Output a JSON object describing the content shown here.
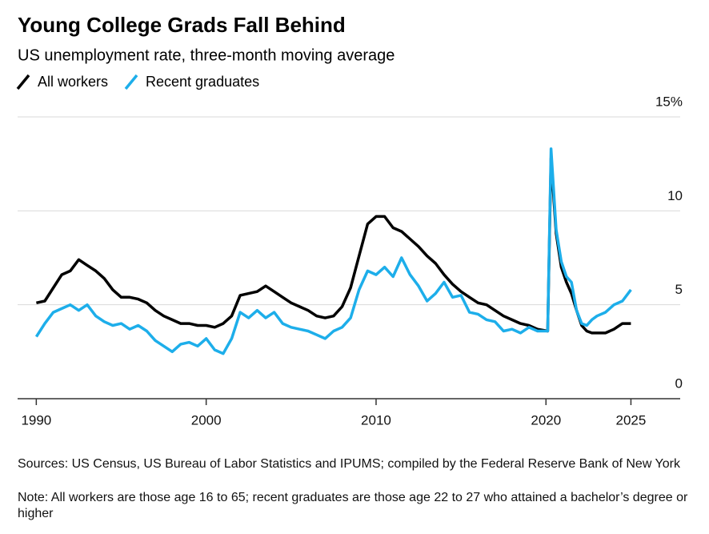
{
  "chart_data": {
    "type": "line",
    "title": "Young College Grads Fall Behind",
    "subtitle": "US unemployment rate, three-month moving average",
    "sources": "Sources: US Census, US Bureau of Labor Statistics and IPUMS; compiled by the Federal Reserve Bank of New York",
    "note": "Note: All workers are those age 16 to 65; recent graduates are those age 22 to 27 who attained a bachelor’s degree or higher",
    "x": [
      1990,
      1990.5,
      1991,
      1991.5,
      1992,
      1992.5,
      1993,
      1993.5,
      1994,
      1994.5,
      1995,
      1995.5,
      1996,
      1996.5,
      1997,
      1997.5,
      1998,
      1998.5,
      1999,
      1999.5,
      2000,
      2000.5,
      2001,
      2001.5,
      2002,
      2002.5,
      2003,
      2003.5,
      2004,
      2004.5,
      2005,
      2005.5,
      2006,
      2006.5,
      2007,
      2007.5,
      2008,
      2008.5,
      2009,
      2009.5,
      2010,
      2010.5,
      2011,
      2011.5,
      2012,
      2012.5,
      2013,
      2013.5,
      2014,
      2014.5,
      2015,
      2015.5,
      2016,
      2016.5,
      2017,
      2017.5,
      2018,
      2018.5,
      2019,
      2019.5,
      2020.1,
      2020.3,
      2020.6,
      2020.9,
      2021.2,
      2021.5,
      2021.8,
      2022.1,
      2022.4,
      2022.7,
      2023,
      2023.5,
      2024,
      2024.5,
      2025
    ],
    "series": [
      {
        "name": "All workers",
        "color": "#000000",
        "values": [
          5.1,
          5.2,
          5.9,
          6.6,
          6.8,
          7.4,
          7.1,
          6.8,
          6.4,
          5.8,
          5.4,
          5.4,
          5.3,
          5.1,
          4.7,
          4.4,
          4.2,
          4.0,
          4.0,
          3.9,
          3.9,
          3.8,
          4.0,
          4.4,
          5.5,
          5.6,
          5.7,
          6.0,
          5.7,
          5.4,
          5.1,
          4.9,
          4.7,
          4.4,
          4.3,
          4.4,
          4.9,
          5.9,
          7.6,
          9.3,
          9.7,
          9.7,
          9.1,
          8.9,
          8.5,
          8.1,
          7.6,
          7.2,
          6.6,
          6.1,
          5.7,
          5.4,
          5.1,
          5.0,
          4.7,
          4.4,
          4.2,
          4.0,
          3.9,
          3.7,
          3.6,
          12.8,
          8.8,
          7.0,
          6.2,
          5.6,
          4.7,
          3.9,
          3.6,
          3.5,
          3.5,
          3.5,
          3.7,
          4.0,
          4.0
        ]
      },
      {
        "name": "Recent graduates",
        "color": "#1daeea",
        "values": [
          3.3,
          4.0,
          4.6,
          4.8,
          5.0,
          4.7,
          5.0,
          4.4,
          4.1,
          3.9,
          4.0,
          3.7,
          3.9,
          3.6,
          3.1,
          2.8,
          2.5,
          2.9,
          3.0,
          2.8,
          3.2,
          2.6,
          2.4,
          3.2,
          4.6,
          4.3,
          4.7,
          4.3,
          4.6,
          4.0,
          3.8,
          3.7,
          3.6,
          3.4,
          3.2,
          3.6,
          3.8,
          4.3,
          5.8,
          6.8,
          6.6,
          7.0,
          6.5,
          7.5,
          6.6,
          6.0,
          5.2,
          5.6,
          6.2,
          5.4,
          5.5,
          4.6,
          4.5,
          4.2,
          4.1,
          3.6,
          3.7,
          3.5,
          3.8,
          3.6,
          3.6,
          13.3,
          9.0,
          7.3,
          6.5,
          6.2,
          4.7,
          4.0,
          3.9,
          4.2,
          4.4,
          4.6,
          5.0,
          5.2,
          5.8
        ]
      }
    ],
    "xlim": [
      1988.9,
      2027.9
    ],
    "xticks": [
      1990,
      2000,
      2010,
      2020,
      2025
    ],
    "ylim": [
      0,
      15
    ],
    "yticks": [
      0,
      5,
      10,
      {
        "value": 15,
        "label": "15%"
      }
    ],
    "grid": true
  }
}
